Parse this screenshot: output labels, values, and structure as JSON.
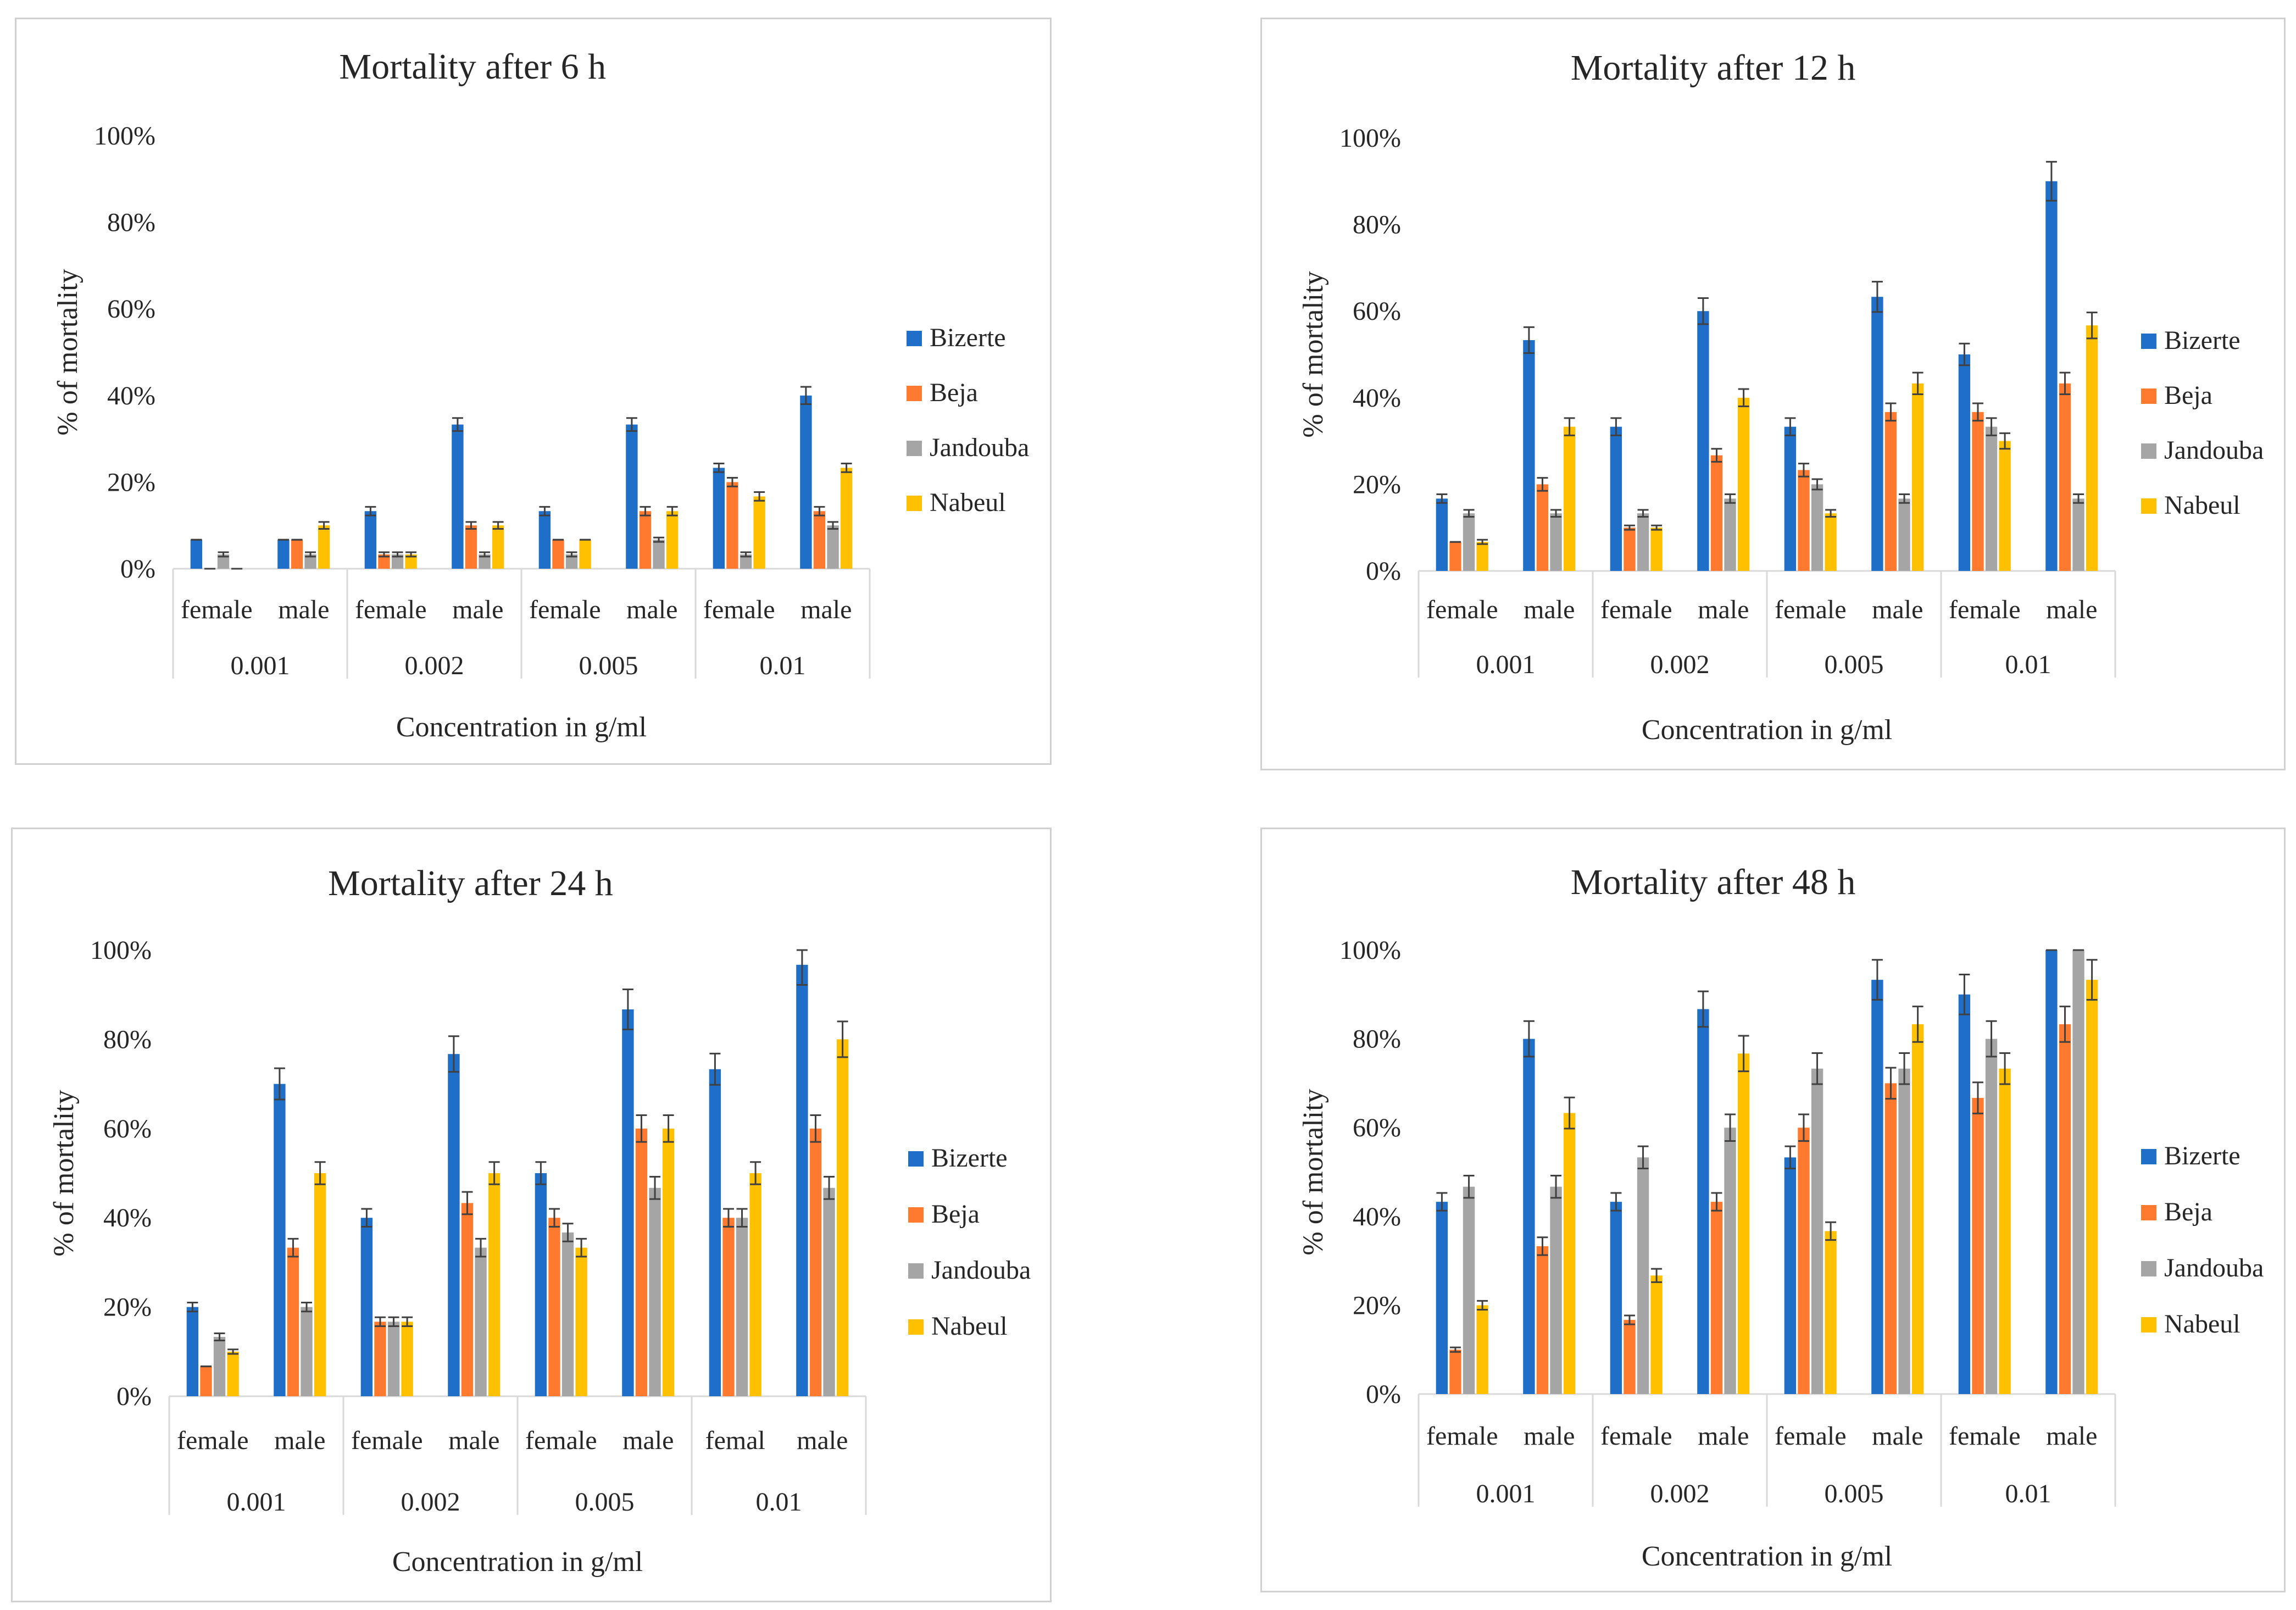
{
  "colors": {
    "Bizerte": "#1f6fc9",
    "Beja": "#ff7a2f",
    "Jandouba": "#a5a5a5",
    "Nabeul": "#ffc000"
  },
  "chart_data": [
    {
      "id": "p6",
      "type": "bar",
      "title": "Mortality after 6 h",
      "xlabel": "Concentration in g/ml",
      "ylabel": "%  of mortality",
      "ylim": [
        0,
        100
      ],
      "yticks": [
        "0%",
        "20%",
        "40%",
        "60%",
        "80%",
        "100%"
      ],
      "groups": [
        "0.001",
        "0.002",
        "0.005",
        "0.01"
      ],
      "categories": [
        "female",
        "male",
        "female",
        "male",
        "female",
        "male",
        "female",
        "male"
      ],
      "legend": [
        "Bizerte",
        "Beja",
        "Jandouba",
        "Nabeul"
      ],
      "series": [
        {
          "name": "Bizerte",
          "values": [
            6.7,
            6.7,
            13.3,
            33.3,
            13.3,
            33.3,
            23.3,
            40
          ],
          "err": [
            0,
            0,
            1,
            1.5,
            1,
            1.5,
            1,
            2
          ]
        },
        {
          "name": "Beja",
          "values": [
            0,
            6.7,
            3.3,
            10,
            6.7,
            13.3,
            20,
            13.3
          ],
          "err": [
            0,
            0,
            0.5,
            0.8,
            0,
            1,
            1,
            1
          ]
        },
        {
          "name": "Jandouba",
          "values": [
            3.3,
            3.3,
            3.3,
            3.3,
            3.3,
            6.7,
            3.3,
            10
          ],
          "err": [
            0.5,
            0.5,
            0.5,
            0.5,
            0.5,
            0.5,
            0.5,
            0.8
          ]
        },
        {
          "name": "Nabeul",
          "values": [
            0,
            10,
            3.3,
            10,
            6.7,
            13.3,
            16.7,
            23.3
          ],
          "err": [
            0,
            0.8,
            0.5,
            0.8,
            0,
            1,
            1,
            1
          ]
        }
      ]
    },
    {
      "id": "p12",
      "type": "bar",
      "title": "Mortality after 12 h",
      "xlabel": "Concentration in g/ml",
      "ylabel": "%  of mortality",
      "ylim": [
        0,
        100
      ],
      "yticks": [
        "0%",
        "20%",
        "40%",
        "60%",
        "80%",
        "100%"
      ],
      "groups": [
        "0.001",
        "0.002",
        "0.005",
        "0.01"
      ],
      "categories": [
        "female",
        "male",
        "female",
        "male",
        "female",
        "male",
        "female",
        "male"
      ],
      "legend": [
        "Bizerte",
        "Beja",
        "Jandouba",
        "Nabeul"
      ],
      "series": [
        {
          "name": "Bizerte",
          "values": [
            16.7,
            53.3,
            33.3,
            60,
            33.3,
            63.3,
            50,
            90
          ],
          "err": [
            1,
            3,
            2,
            3,
            2,
            3.5,
            2.5,
            4.5
          ]
        },
        {
          "name": "Beja",
          "values": [
            6.7,
            20,
            10,
            26.7,
            23.3,
            36.7,
            36.7,
            43.3
          ],
          "err": [
            0,
            1.5,
            0.5,
            1.5,
            1.5,
            2,
            2,
            2.5
          ]
        },
        {
          "name": "Jandouba",
          "values": [
            13.3,
            13.3,
            13.3,
            16.7,
            20,
            16.7,
            33.3,
            16.7
          ],
          "err": [
            0.8,
            0.8,
            0.8,
            1,
            1.2,
            1,
            2,
            1
          ]
        },
        {
          "name": "Nabeul",
          "values": [
            6.7,
            33.3,
            10,
            40,
            13.3,
            43.3,
            30,
            56.7
          ],
          "err": [
            0.5,
            2,
            0.5,
            2,
            0.8,
            2.5,
            1.8,
            3
          ]
        }
      ]
    },
    {
      "id": "p24",
      "type": "bar",
      "title": "Mortality after 24 h",
      "xlabel": "Concentration in g/ml",
      "ylabel": "%  of mortality",
      "ylim": [
        0,
        100
      ],
      "yticks": [
        "0%",
        "20%",
        "40%",
        "60%",
        "80%",
        "100%"
      ],
      "groups": [
        "0.001",
        "0.002",
        "0.005",
        "0.01"
      ],
      "categories": [
        "female",
        "male",
        "female",
        "male",
        "female",
        "male",
        "femal",
        "male"
      ],
      "legend": [
        "Bizerte",
        "Beja",
        "Jandouba",
        "Nabeul"
      ],
      "series": [
        {
          "name": "Bizerte",
          "values": [
            20,
            70,
            40,
            76.7,
            50,
            86.7,
            73.3,
            96.7
          ],
          "err": [
            1,
            3.5,
            2,
            4,
            2.5,
            4.5,
            3.5,
            4.5
          ]
        },
        {
          "name": "Beja",
          "values": [
            6.7,
            33.3,
            16.7,
            43.3,
            40,
            60,
            40,
            60
          ],
          "err": [
            0,
            2,
            1,
            2.5,
            2,
            3,
            2,
            3
          ]
        },
        {
          "name": "Jandouba",
          "values": [
            13.3,
            20,
            16.7,
            33.3,
            36.7,
            46.7,
            40,
            46.7
          ],
          "err": [
            0.8,
            1,
            1,
            2,
            2,
            2.5,
            2,
            2.5
          ]
        },
        {
          "name": "Nabeul",
          "values": [
            10,
            50,
            16.7,
            50,
            33.3,
            60,
            50,
            80
          ],
          "err": [
            0.5,
            2.5,
            1,
            2.5,
            2,
            3,
            2.5,
            4
          ]
        }
      ]
    },
    {
      "id": "p48",
      "type": "bar",
      "title": "Mortality after 48 h",
      "xlabel": "Concentration in g/ml",
      "ylabel": "%  of mortality",
      "ylim": [
        0,
        100
      ],
      "yticks": [
        "0%",
        "20%",
        "40%",
        "60%",
        "80%",
        "100%"
      ],
      "groups": [
        "0.001",
        "0.002",
        "0.005",
        "0.01"
      ],
      "categories": [
        "female",
        "male",
        "female",
        "male",
        "female",
        "male",
        "female",
        "male"
      ],
      "legend": [
        "Bizerte",
        "Beja",
        "Jandouba",
        "Nabeul"
      ],
      "series": [
        {
          "name": "Bizerte",
          "values": [
            43.3,
            80,
            43.3,
            86.7,
            53.3,
            93.3,
            90,
            100
          ],
          "err": [
            2,
            4,
            2,
            4,
            2.5,
            4.5,
            4.5,
            0
          ]
        },
        {
          "name": "Beja",
          "values": [
            10,
            33.3,
            16.7,
            43.3,
            60,
            70,
            66.7,
            83.3
          ],
          "err": [
            0.5,
            2,
            1,
            2,
            3,
            3.5,
            3.5,
            4
          ]
        },
        {
          "name": "Jandouba",
          "values": [
            46.7,
            46.7,
            53.3,
            60,
            73.3,
            73.3,
            80,
            100
          ],
          "err": [
            2.5,
            2.5,
            2.5,
            3,
            3.5,
            3.5,
            4,
            0
          ]
        },
        {
          "name": "Nabeul",
          "values": [
            20,
            63.3,
            26.7,
            76.7,
            36.7,
            83.3,
            73.3,
            93.3
          ],
          "err": [
            1,
            3.5,
            1.5,
            4,
            2,
            4,
            3.5,
            4.5
          ]
        }
      ]
    }
  ]
}
